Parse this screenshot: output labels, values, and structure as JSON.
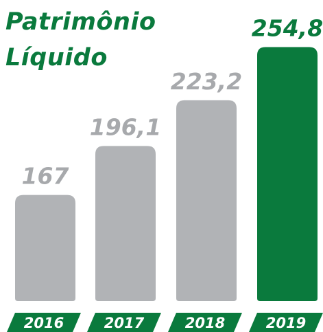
{
  "chart_data": {
    "type": "bar",
    "title": "Patrimônio Líquido",
    "categories": [
      "2016",
      "2017",
      "2018",
      "2019"
    ],
    "values": [
      167,
      196.1,
      223.2,
      254.8
    ],
    "value_labels": [
      "167",
      "196,1",
      "223,2",
      "254,8"
    ],
    "colors": [
      "#b1b3b6",
      "#b1b3b6",
      "#b1b3b6",
      "#0a7a3d"
    ],
    "label_colors": [
      "#a7a9ac",
      "#a7a9ac",
      "#a7a9ac",
      "#0a7a3d"
    ],
    "tab_color": "#0a7a3d",
    "ylim": [
      104,
      255
    ]
  }
}
